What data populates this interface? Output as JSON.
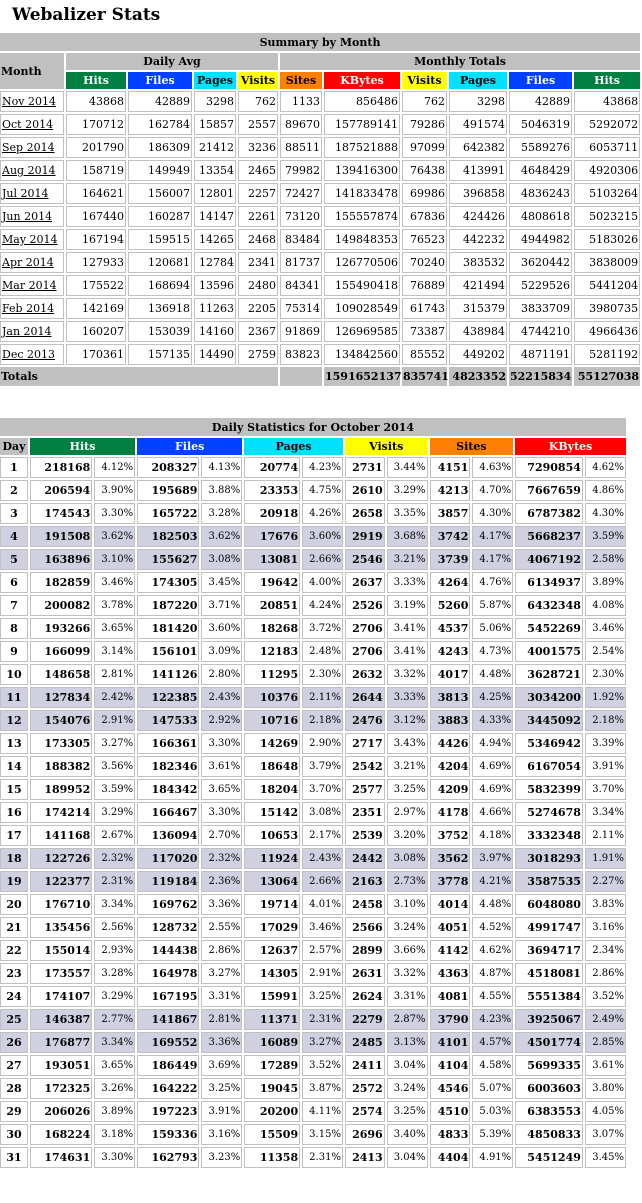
{
  "title": "Webalizer Stats",
  "summary": {
    "heading": "Summary by Month",
    "month_label": "Month",
    "daily_avg_label": "Daily Avg",
    "monthly_totals_label": "Monthly Totals",
    "cols_avg": [
      "Hits",
      "Files",
      "Pages",
      "Visits"
    ],
    "cols_tot": [
      "Sites",
      "KBytes",
      "Visits",
      "Pages",
      "Files",
      "Hits"
    ],
    "rows": [
      [
        "Nov 2014",
        "43868",
        "42889",
        "3298",
        "762",
        "1133",
        "856486",
        "762",
        "3298",
        "42889",
        "43868"
      ],
      [
        "Oct 2014",
        "170712",
        "162784",
        "15857",
        "2557",
        "89670",
        "157789141",
        "79286",
        "491574",
        "5046319",
        "5292072"
      ],
      [
        "Sep 2014",
        "201790",
        "186309",
        "21412",
        "3236",
        "88511",
        "187521888",
        "97099",
        "642382",
        "5589276",
        "6053711"
      ],
      [
        "Aug 2014",
        "158719",
        "149949",
        "13354",
        "2465",
        "79982",
        "139416300",
        "76438",
        "413991",
        "4648429",
        "4920306"
      ],
      [
        "Jul 2014",
        "164621",
        "156007",
        "12801",
        "2257",
        "72427",
        "141833478",
        "69986",
        "396858",
        "4836243",
        "5103264"
      ],
      [
        "Jun 2014",
        "167440",
        "160287",
        "14147",
        "2261",
        "73120",
        "155557874",
        "67836",
        "424426",
        "4808618",
        "5023215"
      ],
      [
        "May 2014",
        "167194",
        "159515",
        "14265",
        "2468",
        "83484",
        "149848353",
        "76523",
        "442232",
        "4944982",
        "5183026"
      ],
      [
        "Apr 2014",
        "127933",
        "120681",
        "12784",
        "2341",
        "81737",
        "126770506",
        "70240",
        "383532",
        "3620442",
        "3838009"
      ],
      [
        "Mar 2014",
        "175522",
        "168694",
        "13596",
        "2480",
        "84341",
        "155490418",
        "76889",
        "421494",
        "5229526",
        "5441204"
      ],
      [
        "Feb 2014",
        "142169",
        "136918",
        "11263",
        "2205",
        "75314",
        "109028549",
        "61743",
        "315379",
        "3833709",
        "3980735"
      ],
      [
        "Jan 2014",
        "160207",
        "153039",
        "14160",
        "2367",
        "91869",
        "126969585",
        "73387",
        "438984",
        "4744210",
        "4966436"
      ],
      [
        "Dec 2013",
        "170361",
        "157135",
        "14490",
        "2759",
        "83823",
        "134842560",
        "85552",
        "449202",
        "4871191",
        "5281192"
      ]
    ],
    "totals_label": "Totals",
    "totals": [
      "1591652137",
      "835741",
      "4823352",
      "52215834",
      "55127038"
    ]
  },
  "daily": {
    "heading": "Daily Statistics for October 2014",
    "day_label": "Day",
    "cols": [
      "Hits",
      "Files",
      "Pages",
      "Visits",
      "Sites",
      "KBytes"
    ],
    "weekend_days": [
      4,
      5,
      11,
      12,
      18,
      19,
      25,
      26
    ],
    "rows": [
      [
        "1",
        "218168",
        "4.12%",
        "208327",
        "4.13%",
        "20774",
        "4.23%",
        "2731",
        "3.44%",
        "4151",
        "4.63%",
        "7290854",
        "4.62%"
      ],
      [
        "2",
        "206594",
        "3.90%",
        "195689",
        "3.88%",
        "23353",
        "4.75%",
        "2610",
        "3.29%",
        "4213",
        "4.70%",
        "7667659",
        "4.86%"
      ],
      [
        "3",
        "174543",
        "3.30%",
        "165722",
        "3.28%",
        "20918",
        "4.26%",
        "2658",
        "3.35%",
        "3857",
        "4.30%",
        "6787382",
        "4.30%"
      ],
      [
        "4",
        "191508",
        "3.62%",
        "182503",
        "3.62%",
        "17676",
        "3.60%",
        "2919",
        "3.68%",
        "3742",
        "4.17%",
        "5668237",
        "3.59%"
      ],
      [
        "5",
        "163896",
        "3.10%",
        "155627",
        "3.08%",
        "13081",
        "2.66%",
        "2546",
        "3.21%",
        "3739",
        "4.17%",
        "4067192",
        "2.58%"
      ],
      [
        "6",
        "182859",
        "3.46%",
        "174305",
        "3.45%",
        "19642",
        "4.00%",
        "2637",
        "3.33%",
        "4264",
        "4.76%",
        "6134937",
        "3.89%"
      ],
      [
        "7",
        "200082",
        "3.78%",
        "187220",
        "3.71%",
        "20851",
        "4.24%",
        "2526",
        "3.19%",
        "5260",
        "5.87%",
        "6432348",
        "4.08%"
      ],
      [
        "8",
        "193266",
        "3.65%",
        "181420",
        "3.60%",
        "18268",
        "3.72%",
        "2706",
        "3.41%",
        "4537",
        "5.06%",
        "5452269",
        "3.46%"
      ],
      [
        "9",
        "166099",
        "3.14%",
        "156101",
        "3.09%",
        "12183",
        "2.48%",
        "2706",
        "3.41%",
        "4243",
        "4.73%",
        "4001575",
        "2.54%"
      ],
      [
        "10",
        "148658",
        "2.81%",
        "141126",
        "2.80%",
        "11295",
        "2.30%",
        "2632",
        "3.32%",
        "4017",
        "4.48%",
        "3628721",
        "2.30%"
      ],
      [
        "11",
        "127834",
        "2.42%",
        "122385",
        "2.43%",
        "10376",
        "2.11%",
        "2644",
        "3.33%",
        "3813",
        "4.25%",
        "3034200",
        "1.92%"
      ],
      [
        "12",
        "154076",
        "2.91%",
        "147533",
        "2.92%",
        "10716",
        "2.18%",
        "2476",
        "3.12%",
        "3883",
        "4.33%",
        "3445092",
        "2.18%"
      ],
      [
        "13",
        "173305",
        "3.27%",
        "166361",
        "3.30%",
        "14269",
        "2.90%",
        "2717",
        "3.43%",
        "4426",
        "4.94%",
        "5346942",
        "3.39%"
      ],
      [
        "14",
        "188382",
        "3.56%",
        "182346",
        "3.61%",
        "18648",
        "3.79%",
        "2542",
        "3.21%",
        "4204",
        "4.69%",
        "6167054",
        "3.91%"
      ],
      [
        "15",
        "189952",
        "3.59%",
        "184342",
        "3.65%",
        "18204",
        "3.70%",
        "2577",
        "3.25%",
        "4209",
        "4.69%",
        "5832399",
        "3.70%"
      ],
      [
        "16",
        "174214",
        "3.29%",
        "166467",
        "3.30%",
        "15142",
        "3.08%",
        "2351",
        "2.97%",
        "4178",
        "4.66%",
        "5274678",
        "3.34%"
      ],
      [
        "17",
        "141168",
        "2.67%",
        "136094",
        "2.70%",
        "10653",
        "2.17%",
        "2539",
        "3.20%",
        "3752",
        "4.18%",
        "3332348",
        "2.11%"
      ],
      [
        "18",
        "122726",
        "2.32%",
        "117020",
        "2.32%",
        "11924",
        "2.43%",
        "2442",
        "3.08%",
        "3562",
        "3.97%",
        "3018293",
        "1.91%"
      ],
      [
        "19",
        "122377",
        "2.31%",
        "119184",
        "2.36%",
        "13064",
        "2.66%",
        "2163",
        "2.73%",
        "3778",
        "4.21%",
        "3587535",
        "2.27%"
      ],
      [
        "20",
        "176710",
        "3.34%",
        "169762",
        "3.36%",
        "19714",
        "4.01%",
        "2458",
        "3.10%",
        "4014",
        "4.48%",
        "6048080",
        "3.83%"
      ],
      [
        "21",
        "135456",
        "2.56%",
        "128732",
        "2.55%",
        "17029",
        "3.46%",
        "2566",
        "3.24%",
        "4051",
        "4.52%",
        "4991747",
        "3.16%"
      ],
      [
        "22",
        "155014",
        "2.93%",
        "144438",
        "2.86%",
        "12637",
        "2.57%",
        "2899",
        "3.66%",
        "4142",
        "4.62%",
        "3694717",
        "2.34%"
      ],
      [
        "23",
        "173557",
        "3.28%",
        "164978",
        "3.27%",
        "14305",
        "2.91%",
        "2631",
        "3.32%",
        "4363",
        "4.87%",
        "4518081",
        "2.86%"
      ],
      [
        "24",
        "174107",
        "3.29%",
        "167195",
        "3.31%",
        "15991",
        "3.25%",
        "2624",
        "3.31%",
        "4081",
        "4.55%",
        "5551384",
        "3.52%"
      ],
      [
        "25",
        "146387",
        "2.77%",
        "141867",
        "2.81%",
        "11371",
        "2.31%",
        "2279",
        "2.87%",
        "3790",
        "4.23%",
        "3925067",
        "2.49%"
      ],
      [
        "26",
        "176877",
        "3.34%",
        "169552",
        "3.36%",
        "16089",
        "3.27%",
        "2485",
        "3.13%",
        "4101",
        "4.57%",
        "4501774",
        "2.85%"
      ],
      [
        "27",
        "193051",
        "3.65%",
        "186449",
        "3.69%",
        "17289",
        "3.52%",
        "2411",
        "3.04%",
        "4104",
        "4.58%",
        "5699335",
        "3.61%"
      ],
      [
        "28",
        "172325",
        "3.26%",
        "164222",
        "3.25%",
        "19045",
        "3.87%",
        "2572",
        "3.24%",
        "4546",
        "5.07%",
        "6003603",
        "3.80%"
      ],
      [
        "29",
        "206026",
        "3.89%",
        "197223",
        "3.91%",
        "20200",
        "4.11%",
        "2574",
        "3.25%",
        "4510",
        "5.03%",
        "6383553",
        "4.05%"
      ],
      [
        "30",
        "168224",
        "3.18%",
        "159336",
        "3.16%",
        "15509",
        "3.15%",
        "2696",
        "3.40%",
        "4833",
        "5.39%",
        "4850833",
        "3.07%"
      ],
      [
        "31",
        "174631",
        "3.30%",
        "162793",
        "3.23%",
        "11358",
        "2.31%",
        "2413",
        "3.04%",
        "4404",
        "4.91%",
        "5451249",
        "3.45%"
      ]
    ]
  }
}
